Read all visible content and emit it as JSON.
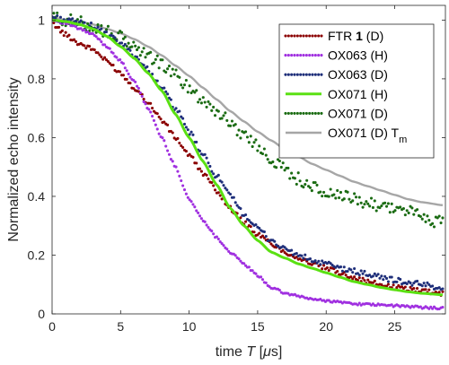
{
  "chart_data": {
    "type": "scatter",
    "xlabel": {
      "prefix": "time ",
      "var": "T",
      "units": " [",
      "mu": "μ",
      "unit": "s]"
    },
    "ylabel": "Normalized echo intensity",
    "xlim": [
      0,
      28.7
    ],
    "ylim": [
      0,
      1.05
    ],
    "xticks": [
      0,
      5,
      10,
      15,
      20,
      25
    ],
    "yticks": [
      0,
      0.2,
      0.4,
      0.6,
      0.8,
      1
    ],
    "ytick_labels": [
      "0",
      "0.2",
      "0.4",
      "0.6",
      "0.8",
      "1"
    ],
    "grid": false,
    "legend_position": "top-right",
    "series": [
      {
        "name": "FTR 1 (D)",
        "name_parts": [
          "FTR ",
          "1",
          " (D)"
        ],
        "style": "dots",
        "color": "#8b0000",
        "noise": 0.008,
        "x": [
          0,
          1,
          2,
          3,
          4,
          5,
          6,
          7,
          8,
          9,
          10,
          11,
          12,
          13,
          14,
          15,
          16,
          17,
          18,
          19,
          20,
          21,
          22,
          23,
          24,
          25,
          26,
          27,
          28.5
        ],
        "y": [
          0.99,
          0.95,
          0.92,
          0.9,
          0.86,
          0.82,
          0.77,
          0.72,
          0.66,
          0.6,
          0.54,
          0.48,
          0.42,
          0.36,
          0.31,
          0.27,
          0.24,
          0.21,
          0.19,
          0.17,
          0.155,
          0.14,
          0.125,
          0.11,
          0.1,
          0.09,
          0.085,
          0.08,
          0.07
        ]
      },
      {
        "name": "OX063 (H)",
        "name_parts": [
          "OX063 (H)"
        ],
        "style": "dots",
        "color": "#a030e0",
        "noise": 0.004,
        "x": [
          0,
          1,
          2,
          3,
          4,
          5,
          6,
          7,
          8,
          9,
          10,
          11,
          12,
          13,
          14,
          15,
          16,
          17,
          18,
          19,
          20,
          21,
          22,
          23,
          24,
          25,
          26,
          27,
          28.5
        ],
        "y": [
          1.0,
          0.99,
          0.97,
          0.95,
          0.91,
          0.86,
          0.79,
          0.7,
          0.6,
          0.5,
          0.39,
          0.32,
          0.26,
          0.21,
          0.17,
          0.13,
          0.09,
          0.07,
          0.06,
          0.05,
          0.045,
          0.04,
          0.035,
          0.032,
          0.03,
          0.028,
          0.025,
          0.022,
          0.02
        ]
      },
      {
        "name": "OX063 (D)",
        "name_parts": [
          "OX063 (D)"
        ],
        "style": "dots",
        "color": "#1f2f7a",
        "noise": 0.01,
        "x": [
          0,
          1,
          2,
          3,
          4,
          5,
          6,
          7,
          8,
          9,
          10,
          11,
          12,
          13,
          14,
          15,
          16,
          17,
          18,
          19,
          20,
          21,
          22,
          23,
          24,
          25,
          26,
          27,
          28.5
        ],
        "y": [
          1.01,
          1.0,
          0.99,
          0.98,
          0.95,
          0.92,
          0.88,
          0.83,
          0.77,
          0.7,
          0.62,
          0.54,
          0.47,
          0.4,
          0.34,
          0.29,
          0.25,
          0.22,
          0.2,
          0.18,
          0.17,
          0.155,
          0.145,
          0.135,
          0.125,
          0.115,
          0.105,
          0.1,
          0.09
        ]
      },
      {
        "name": "OX071 (H)",
        "name_parts": [
          "OX071 (H)"
        ],
        "style": "line",
        "color": "#5ae012",
        "x": [
          0,
          1,
          2,
          3,
          4,
          5,
          6,
          7,
          8,
          9,
          10,
          11,
          12,
          13,
          14,
          15,
          16,
          17,
          18,
          19,
          20,
          21,
          22,
          23,
          24,
          25,
          26,
          27,
          28.5
        ],
        "y": [
          1.0,
          0.995,
          0.985,
          0.97,
          0.945,
          0.91,
          0.87,
          0.82,
          0.76,
          0.68,
          0.6,
          0.52,
          0.44,
          0.36,
          0.3,
          0.25,
          0.21,
          0.19,
          0.17,
          0.155,
          0.14,
          0.125,
          0.11,
          0.1,
          0.09,
          0.082,
          0.075,
          0.07,
          0.065
        ]
      },
      {
        "name": "OX071 (D)",
        "name_parts": [
          "OX071 (D)"
        ],
        "style": "dots",
        "color": "#1a6b12",
        "noise": 0.022,
        "x": [
          0,
          1,
          2,
          3,
          4,
          5,
          6,
          7,
          8,
          9,
          10,
          11,
          12,
          13,
          14,
          15,
          16,
          17,
          18,
          19,
          20,
          21,
          22,
          23,
          24,
          25,
          26,
          27,
          28.5
        ],
        "y": [
          1.01,
          1.0,
          0.99,
          0.98,
          0.96,
          0.94,
          0.91,
          0.88,
          0.85,
          0.81,
          0.77,
          0.73,
          0.69,
          0.65,
          0.61,
          0.57,
          0.53,
          0.49,
          0.46,
          0.43,
          0.41,
          0.4,
          0.39,
          0.38,
          0.37,
          0.36,
          0.35,
          0.33,
          0.31
        ]
      },
      {
        "name": "OX071 (D) Tm",
        "name_parts": [
          "OX071 (D) T",
          "m"
        ],
        "style": "line",
        "color": "#a6a6a6",
        "x": [
          0,
          1,
          2,
          3,
          4,
          5,
          6,
          7,
          8,
          9,
          10,
          11,
          12,
          13,
          14,
          15,
          16,
          17,
          18,
          19,
          20,
          21,
          22,
          23,
          24,
          25,
          26,
          27,
          28.5
        ],
        "y": [
          1.01,
          1.0,
          0.995,
          0.985,
          0.97,
          0.955,
          0.935,
          0.91,
          0.88,
          0.845,
          0.81,
          0.77,
          0.73,
          0.69,
          0.655,
          0.62,
          0.59,
          0.56,
          0.535,
          0.51,
          0.49,
          0.47,
          0.45,
          0.435,
          0.42,
          0.405,
          0.39,
          0.38,
          0.37
        ]
      }
    ]
  }
}
